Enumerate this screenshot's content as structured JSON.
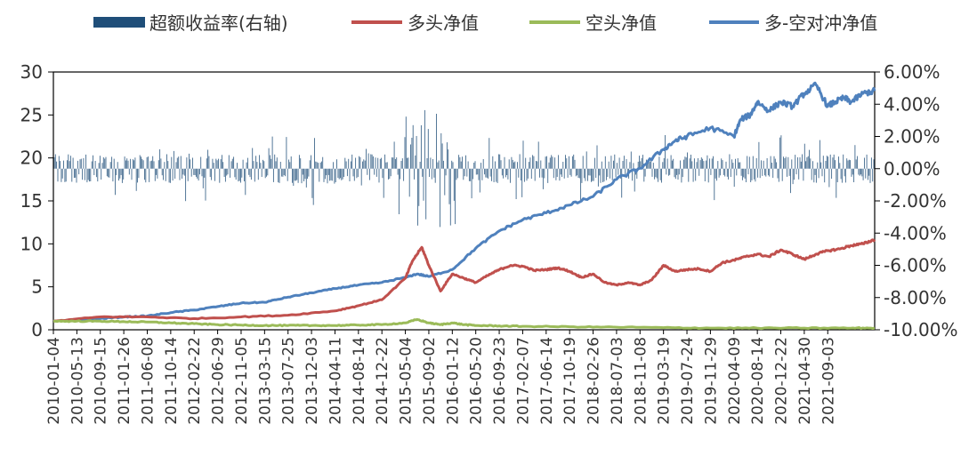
{
  "chart_data": {
    "type": "line",
    "legend": [
      {
        "name": "超额收益率(右轴)",
        "kind": "bar",
        "color": "#1F4E79"
      },
      {
        "name": "多头净值",
        "kind": "line",
        "color": "#C0504D"
      },
      {
        "name": "空头净值",
        "kind": "line",
        "color": "#9BBB59"
      },
      {
        "name": "多-空对冲净值",
        "kind": "line",
        "color": "#4F81BD"
      }
    ],
    "legend_position": "top",
    "grid": false,
    "x_tick_labels": [
      "2010-01-04",
      "2010-05-13",
      "2010-09-15",
      "2011-01-26",
      "2011-06-08",
      "2011-10-14",
      "2012-02-22",
      "2012-06-29",
      "2012-11-05",
      "2013-03-15",
      "2013-07-25",
      "2013-12-03",
      "2014-04-11",
      "2014-08-14",
      "2014-12-22",
      "2015-05-04",
      "2015-09-02",
      "2016-01-12",
      "2016-05-20",
      "2016-09-23",
      "2017-02-07",
      "2017-06-14",
      "2017-10-19",
      "2018-02-26",
      "2018-07-03",
      "2018-11-08",
      "2019-03-19",
      "2019-07-24",
      "2019-11-29",
      "2020-04-09",
      "2020-08-14",
      "2020-12-22",
      "2021-04-30",
      "2021-09-03"
    ],
    "y_left": {
      "ylim": [
        0,
        30
      ],
      "ticks": [
        "0",
        "5",
        "10",
        "15",
        "20",
        "25",
        "30"
      ]
    },
    "y_right": {
      "ylim": [
        -10,
        6
      ],
      "ticks": [
        "-10.00%",
        "-8.00%",
        "-6.00%",
        "-4.00%",
        "-2.00%",
        "0.00%",
        "2.00%",
        "4.00%",
        "6.00%"
      ]
    },
    "series": [
      {
        "name": "多头净值",
        "axis": "left",
        "color": "#C0504D",
        "x": [
          0,
          2,
          4,
          6,
          8,
          10,
          12,
          13,
          14,
          15,
          15.3,
          15.7,
          16,
          16.5,
          17,
          17.5,
          18,
          18.5,
          19,
          19.5,
          20,
          20.5,
          21,
          21.5,
          22,
          22.5,
          23,
          23.5,
          24,
          24.5,
          25,
          25.5,
          26,
          26.5,
          27,
          27.5,
          28,
          28.5,
          29,
          29.5,
          30,
          30.5,
          31,
          31.5,
          32,
          32.5,
          33,
          33.5,
          34,
          34.5,
          35
        ],
        "y": [
          1.0,
          1.5,
          1.5,
          1.3,
          1.5,
          1.7,
          2.2,
          2.8,
          3.5,
          6.0,
          8.0,
          9.6,
          7.5,
          4.5,
          6.5,
          6.0,
          5.5,
          6.3,
          7.0,
          7.5,
          7.4,
          6.9,
          7.0,
          7.2,
          6.8,
          6.1,
          6.5,
          5.5,
          5.2,
          5.5,
          5.2,
          5.8,
          7.5,
          6.8,
          7.0,
          7.1,
          6.8,
          7.8,
          8.1,
          8.5,
          8.8,
          8.5,
          9.3,
          8.8,
          8.2,
          8.8,
          9.2,
          9.4,
          9.8,
          10.0,
          10.5
        ]
      },
      {
        "name": "空头净值",
        "axis": "left",
        "color": "#9BBB59",
        "x": [
          0,
          1,
          2,
          3,
          4,
          5,
          6,
          7,
          8,
          9,
          10,
          11,
          12,
          13,
          14,
          15,
          15.5,
          16,
          16.5,
          17,
          17.5,
          18,
          19,
          20,
          22,
          24,
          26,
          28,
          30,
          32,
          34,
          35
        ],
        "y": [
          1.0,
          1.0,
          1.0,
          0.95,
          0.9,
          0.8,
          0.7,
          0.6,
          0.55,
          0.5,
          0.5,
          0.5,
          0.5,
          0.55,
          0.6,
          0.8,
          1.2,
          0.8,
          0.6,
          0.8,
          0.6,
          0.5,
          0.45,
          0.4,
          0.35,
          0.3,
          0.25,
          0.2,
          0.2,
          0.2,
          0.2,
          0.2
        ]
      },
      {
        "name": "多-空对冲净值",
        "axis": "left",
        "color": "#4F81BD",
        "x": [
          0,
          1,
          2,
          3,
          4,
          5,
          6,
          7,
          8,
          9,
          10,
          11,
          12,
          13,
          14,
          15,
          15.5,
          16,
          17,
          18,
          19,
          20,
          21,
          22,
          23,
          24,
          25,
          26,
          26.5,
          27,
          28,
          29,
          29.3,
          29.7,
          30,
          30.5,
          31,
          31.5,
          32,
          32.5,
          33,
          33.3,
          33.7,
          34,
          34.5,
          35
        ],
        "y": [
          1.0,
          1.1,
          1.3,
          1.5,
          1.6,
          2.0,
          2.3,
          2.7,
          3.1,
          3.2,
          3.8,
          4.3,
          4.8,
          5.2,
          5.5,
          6.1,
          6.5,
          6.2,
          7.0,
          9.5,
          11.5,
          12.8,
          13.6,
          14.5,
          15.5,
          17.5,
          18.8,
          21.0,
          22.0,
          22.5,
          23.5,
          22.5,
          24.5,
          25.0,
          26.5,
          25.5,
          26.5,
          26.0,
          27.5,
          28.5,
          26.0,
          26.5,
          27.0,
          26.5,
          27.5,
          27.8
        ]
      }
    ],
    "bars": {
      "name": "超额收益率(右轴)",
      "axis": "right",
      "color": "#1F4E79",
      "note": "daily excess return fluctuating around 0.00% mostly within ±1%, spikes to about ±3%"
    }
  }
}
